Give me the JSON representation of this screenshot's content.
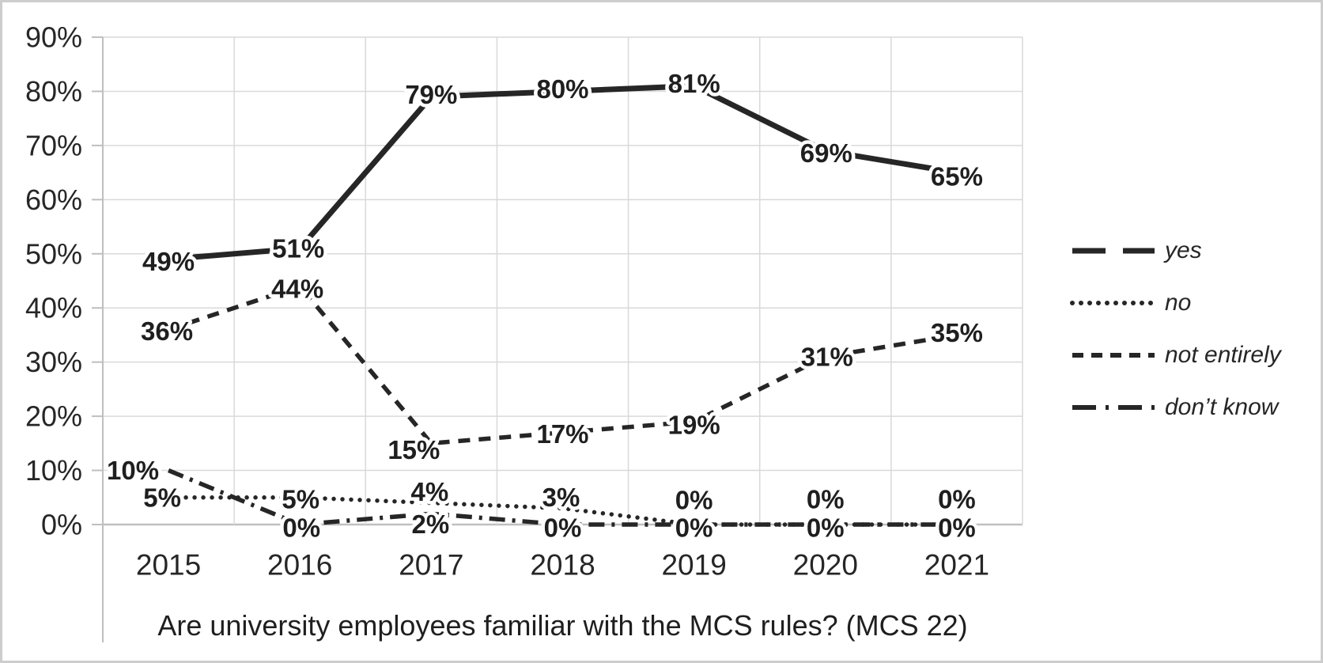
{
  "frame": {
    "border_color": "#cdcdcd",
    "background": "#ffffff"
  },
  "chart_data": {
    "type": "line",
    "title": "Are university employees familiar with the MCS rules? (MCS 22)",
    "categories": [
      "2015",
      "2016",
      "2017",
      "2018",
      "2019",
      "2020",
      "2021"
    ],
    "y_axis": {
      "min": 0,
      "max": 90,
      "step": 10,
      "tick_labels": [
        "0%",
        "10%",
        "20%",
        "30%",
        "40%",
        "50%",
        "60%",
        "70%",
        "80%",
        "90%"
      ]
    },
    "grid": true,
    "legend_position": "right",
    "data_label_format": "percent",
    "series": [
      {
        "name": "yes",
        "line_style": "long-dash",
        "values": [
          49,
          51,
          79,
          80,
          81,
          69,
          65
        ],
        "labels": [
          "49%",
          "51%",
          "79%",
          "80%",
          "81%",
          "69%",
          "65%"
        ],
        "label_offsets": [
          [
            0,
            3
          ],
          [
            -2,
            0
          ],
          [
            0,
            -3
          ],
          [
            0,
            -3
          ],
          [
            0,
            -3
          ],
          [
            1,
            3
          ],
          [
            0,
            5
          ]
        ]
      },
      {
        "name": "no",
        "line_style": "dot",
        "values": [
          5,
          5,
          4,
          3,
          0,
          0,
          0
        ],
        "labels": [
          "5%",
          "5%",
          "4%",
          "3%",
          "0%",
          "0%",
          "0%"
        ],
        "label_offsets": [
          [
            -8,
            0
          ],
          [
            1,
            2
          ],
          [
            -2,
            -14
          ],
          [
            -2,
            -14
          ],
          [
            0,
            -31
          ],
          [
            0,
            -32
          ],
          [
            0,
            -32
          ]
        ]
      },
      {
        "name": "not entirely",
        "line_style": "dash",
        "values": [
          36,
          44,
          15,
          17,
          19,
          31,
          35
        ],
        "labels": [
          "36%",
          "44%",
          "15%",
          "17%",
          "19%",
          "31%",
          "35%"
        ],
        "label_offsets": [
          [
            -2,
            2
          ],
          [
            -3,
            3
          ],
          [
            -22,
            8
          ],
          [
            0,
            2
          ],
          [
            0,
            4
          ],
          [
            2,
            0
          ],
          [
            0,
            -3
          ]
        ]
      },
      {
        "name": "don’t know",
        "line_style": "dash-dot",
        "values": [
          10,
          0,
          2,
          0,
          0,
          0,
          0
        ],
        "labels": [
          "10%",
          "0%",
          "2%",
          "0%",
          "0%",
          "0%",
          "0%"
        ],
        "label_offsets": [
          [
            -45,
            0
          ],
          [
            2,
            4
          ],
          [
            -1,
            13
          ],
          [
            0,
            4
          ],
          [
            0,
            4
          ],
          [
            0,
            4
          ],
          [
            0,
            4
          ]
        ]
      }
    ],
    "legend_entries": [
      "yes",
      "no",
      "not entirely",
      "don’t know"
    ],
    "colors": {
      "line": "#262626",
      "data_label": "#1f1f1f",
      "axis_text": "#262626",
      "gridline": "#d9d9d9",
      "axis_line": "#bfbfbf",
      "label_halo": "#ffffff"
    }
  }
}
